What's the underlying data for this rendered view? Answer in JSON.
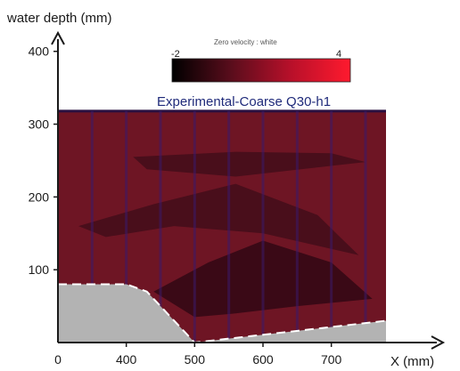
{
  "chart_data": {
    "type": "heatmap",
    "title": "Experimental-Coarse Q30-h1",
    "ylabel": "water depth (mm)",
    "xlabel": "X (mm)",
    "x_ticks": [
      "0",
      "400",
      "500",
      "600",
      "700"
    ],
    "y_ticks": [
      "100",
      "200",
      "300",
      "400"
    ],
    "xlim": [
      300,
      780
    ],
    "ylim": [
      0,
      440
    ],
    "colorbar": {
      "note": "Zero velocity : white",
      "min_label": "-2",
      "max_label": "4",
      "min": -2,
      "max": 4,
      "colors": [
        "#000000",
        "#5a0d1c",
        "#b8102a",
        "#ff1a2e"
      ]
    },
    "water_surface": 318,
    "field_colors": {
      "base": "#6e1524",
      "dark_band": "#3e0c18",
      "low_velocity": "#2a0612",
      "grid_lines": "#3a1a6b",
      "bed": "#b3b3b3"
    },
    "bed_profile": [
      {
        "x": 300,
        "y": 80
      },
      {
        "x": 400,
        "y": 80
      },
      {
        "x": 430,
        "y": 70
      },
      {
        "x": 500,
        "y": 0
      },
      {
        "x": 780,
        "y": 30
      }
    ],
    "vertical_gridlines_x": [
      350,
      400,
      450,
      500,
      550,
      600,
      650,
      700,
      750
    ],
    "dark_regions": [
      {
        "name": "upper-band",
        "points": [
          {
            "x": 410,
            "y": 255
          },
          {
            "x": 560,
            "y": 262
          },
          {
            "x": 700,
            "y": 260
          },
          {
            "x": 750,
            "y": 248
          },
          {
            "x": 560,
            "y": 228
          },
          {
            "x": 430,
            "y": 238
          }
        ]
      },
      {
        "name": "mid-band",
        "points": [
          {
            "x": 330,
            "y": 160
          },
          {
            "x": 440,
            "y": 190
          },
          {
            "x": 560,
            "y": 218
          },
          {
            "x": 680,
            "y": 175
          },
          {
            "x": 740,
            "y": 120
          },
          {
            "x": 600,
            "y": 150
          },
          {
            "x": 470,
            "y": 160
          },
          {
            "x": 370,
            "y": 145
          }
        ]
      },
      {
        "name": "low-core",
        "points": [
          {
            "x": 440,
            "y": 70
          },
          {
            "x": 520,
            "y": 110
          },
          {
            "x": 600,
            "y": 140
          },
          {
            "x": 700,
            "y": 110
          },
          {
            "x": 760,
            "y": 60
          },
          {
            "x": 650,
            "y": 50
          },
          {
            "x": 560,
            "y": 40
          },
          {
            "x": 500,
            "y": 35
          }
        ]
      }
    ]
  }
}
